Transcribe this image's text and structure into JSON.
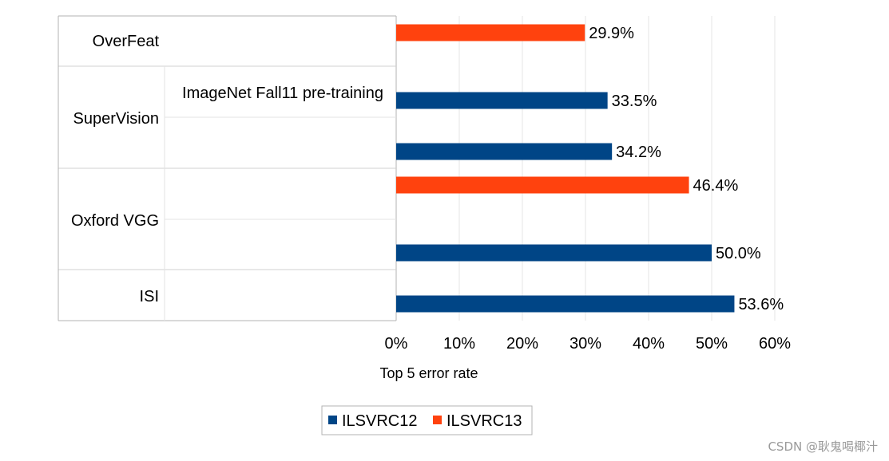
{
  "chart_data": {
    "type": "bar",
    "orientation": "horizontal",
    "xlabel": "Top 5 error rate",
    "xlim": [
      0,
      60
    ],
    "x_ticks": [
      "0%",
      "10%",
      "20%",
      "30%",
      "40%",
      "50%",
      "60%"
    ],
    "grid": true,
    "legend_position": "bottom",
    "series": [
      {
        "name": "ILSVRC12",
        "color": "#004586"
      },
      {
        "name": "ILSVRC13",
        "color": "#ff420e"
      }
    ],
    "categories": [
      "OverFeat",
      "SuperVision",
      "Oxford VGG",
      "ISI"
    ],
    "bars": [
      {
        "category": "OverFeat",
        "series": "ILSVRC13",
        "value": 29.9,
        "label": "29.9%"
      },
      {
        "category": "SuperVision",
        "series": "ILSVRC12",
        "value": 33.5,
        "label": "33.5%",
        "annotation": "ImageNet Fall11 pre-training"
      },
      {
        "category": "SuperVision",
        "series": "ILSVRC12",
        "value": 34.2,
        "label": "34.2%"
      },
      {
        "category": "Oxford VGG",
        "series": "ILSVRC13",
        "value": 46.4,
        "label": "46.4%"
      },
      {
        "category": "Oxford VGG",
        "series": "ILSVRC12",
        "value": 50.0,
        "label": "50.0%"
      },
      {
        "category": "ISI",
        "series": "ILSVRC12",
        "value": 53.6,
        "label": "53.6%"
      }
    ]
  },
  "watermark": "CSDN @耿鬼喝椰汁"
}
